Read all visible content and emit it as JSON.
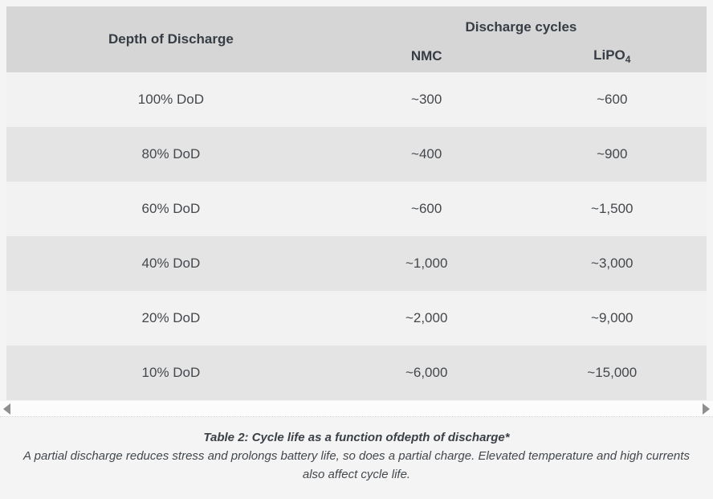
{
  "table": {
    "header": {
      "depth_label": "Depth of Discharge",
      "cycles_label": "Discharge cycles",
      "nmc_label": "NMC",
      "lipo_base": "LiPO",
      "lipo_sub": "4"
    },
    "rows": [
      {
        "dod": "100% DoD",
        "nmc": "~300",
        "lipo4": "~600"
      },
      {
        "dod": "80% DoD",
        "nmc": "~400",
        "lipo4": "~900"
      },
      {
        "dod": "60% DoD",
        "nmc": "~600",
        "lipo4": "~1,500"
      },
      {
        "dod": "40% DoD",
        "nmc": "~1,000",
        "lipo4": "~3,000"
      },
      {
        "dod": "20% DoD",
        "nmc": "~2,000",
        "lipo4": "~9,000"
      },
      {
        "dod": "10% DoD",
        "nmc": "~6,000",
        "lipo4": "~15,000"
      }
    ]
  },
  "caption": {
    "title": "Table 2: Cycle life as a function ofdepth of discharge*",
    "note": "A partial discharge reduces stress and prolongs battery life, so does a partial charge. Elevated temperature and high currents also affect cycle life."
  },
  "chart_data": {
    "type": "table",
    "title": "Table 2: Cycle life as a function ofdepth of discharge*",
    "column_group": "Discharge cycles",
    "columns": [
      "Depth of Discharge",
      "NMC",
      "LiPO4"
    ],
    "rows": [
      [
        "100% DoD",
        "~300",
        "~600"
      ],
      [
        "80% DoD",
        "~400",
        "~900"
      ],
      [
        "60% DoD",
        "~600",
        "~1,500"
      ],
      [
        "40% DoD",
        "~1,000",
        "~3,000"
      ],
      [
        "20% DoD",
        "~2,000",
        "~9,000"
      ],
      [
        "10% DoD",
        "~6,000",
        "~15,000"
      ]
    ],
    "numeric": {
      "dod_percent": [
        100,
        80,
        60,
        40,
        20,
        10
      ],
      "nmc_cycles": [
        300,
        400,
        600,
        1000,
        2000,
        6000
      ],
      "lipo4_cycles": [
        600,
        900,
        1500,
        3000,
        9000,
        15000
      ]
    },
    "footnote": "A partial discharge reduces stress and prolongs battery life, so does a partial charge. Elevated temperature and high currents also affect cycle life."
  },
  "colors": {
    "page_bg": "#f4f4f4",
    "header_bg": "#d6d6d6",
    "row_odd_bg": "#f2f2f2",
    "row_even_bg": "#e4e4e4",
    "header_text": "#373d44",
    "body_text": "#44484d",
    "scrollbar_track": "#fcfcfc",
    "scrollbar_arrow": "#8f8f8f"
  }
}
